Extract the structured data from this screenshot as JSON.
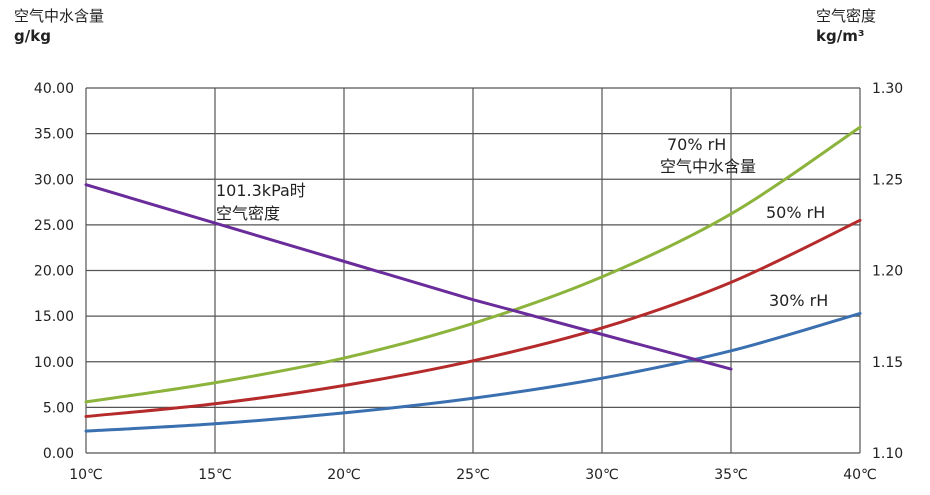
{
  "chart_data": {
    "type": "line",
    "left_axis": {
      "title_line1": "空气中水含量",
      "title_line2": "g/kg",
      "ylim": [
        0,
        40
      ],
      "tick_labels": [
        "0.00",
        "5.00",
        "10.00",
        "15.00",
        "20.00",
        "25.00",
        "30.00",
        "35.00",
        "40.00"
      ],
      "tick_values": [
        0,
        5,
        10,
        15,
        20,
        25,
        30,
        35,
        40
      ]
    },
    "right_axis": {
      "title_line1": "空气密度",
      "title_line2": "kg/m³",
      "ylim": [
        1.1,
        1.3
      ],
      "tick_labels": [
        "1.10",
        "1.15",
        "1.20",
        "1.25",
        "1.30"
      ],
      "tick_values": [
        1.1,
        1.15,
        1.2,
        1.25,
        1.3
      ]
    },
    "x_axis": {
      "xlim": [
        10,
        40
      ],
      "tick_labels": [
        "10℃",
        "15℃",
        "20℃",
        "25℃",
        "30℃",
        "35℃",
        "40℃"
      ],
      "tick_values": [
        10,
        15,
        20,
        25,
        30,
        35,
        40
      ]
    },
    "grid": true,
    "series": [
      {
        "name_line1": "70% rH",
        "name_line2": "空气中水含量",
        "axis": "left",
        "color": "#8cb43c",
        "x": [
          10,
          15,
          20,
          25,
          30,
          35,
          40
        ],
        "y": [
          5.6,
          7.7,
          10.4,
          14.2,
          19.3,
          26.2,
          35.7
        ]
      },
      {
        "name": "50% rH",
        "axis": "left",
        "color": "#b52a2a",
        "x": [
          10,
          15,
          20,
          25,
          30,
          35,
          40
        ],
        "y": [
          4.0,
          5.4,
          7.4,
          10.1,
          13.7,
          18.7,
          25.5
        ]
      },
      {
        "name": "30% rH",
        "axis": "left",
        "color": "#3a6fb0",
        "x": [
          10,
          15,
          20,
          25,
          30,
          35,
          40
        ],
        "y": [
          2.4,
          3.2,
          4.4,
          6.0,
          8.2,
          11.2,
          15.3
        ]
      },
      {
        "name_line1": "101.3kPa时",
        "name_line2": "空气密度",
        "axis": "right",
        "color": "#6a2c9a",
        "x": [
          10,
          15,
          20,
          25,
          30,
          35
        ],
        "y": [
          1.247,
          1.226,
          1.205,
          1.184,
          1.165,
          1.146
        ]
      }
    ]
  }
}
